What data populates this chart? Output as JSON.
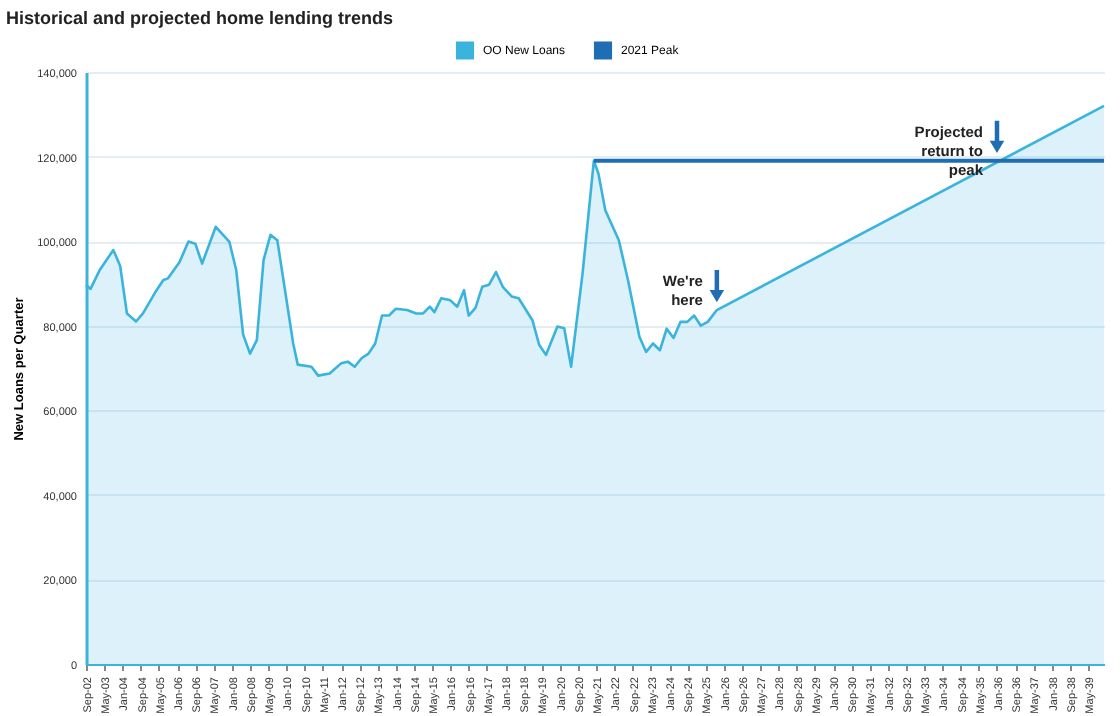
{
  "chart_data": {
    "type": "area",
    "title": "Historical and projected home lending trends",
    "ylabel": "New Loans per Quarter",
    "series": [
      {
        "name": "OO New Loans",
        "type": "area",
        "color": "#3bb4dd",
        "x": [
          "2002-09",
          "2002-11",
          "2003-03",
          "2003-09",
          "2003-12",
          "2004-03",
          "2004-07",
          "2004-10",
          "2005-04",
          "2005-07",
          "2005-09",
          "2006-02",
          "2006-06",
          "2006-09",
          "2006-12",
          "2007-06",
          "2007-12",
          "2008-03",
          "2008-06",
          "2008-09",
          "2008-12",
          "2009-03",
          "2009-06",
          "2009-09",
          "2010-04",
          "2010-06",
          "2010-12",
          "2011-03",
          "2011-08",
          "2012-01",
          "2012-04",
          "2012-07",
          "2012-10",
          "2013-01",
          "2013-04",
          "2013-07",
          "2013-10",
          "2014-01",
          "2014-06",
          "2014-10",
          "2015-01",
          "2015-04",
          "2015-06",
          "2015-09",
          "2016-01",
          "2016-04",
          "2016-07",
          "2016-09",
          "2016-12",
          "2017-03",
          "2017-06",
          "2017-09",
          "2017-12",
          "2018-04",
          "2018-07",
          "2019-01",
          "2019-04",
          "2019-07",
          "2019-12",
          "2020-03",
          "2020-06",
          "2020-11",
          "2021-04",
          "2021-06",
          "2021-09",
          "2022-03",
          "2022-07",
          "2022-12",
          "2023-03",
          "2023-06",
          "2023-09",
          "2023-12",
          "2024-03",
          "2024-06",
          "2024-09",
          "2024-12",
          "2025-03",
          "2025-06",
          "2025-10",
          "2039-12"
        ],
        "values": [
          89700,
          88700,
          93100,
          97900,
          94200,
          82900,
          81000,
          82900,
          88400,
          90800,
          91200,
          95000,
          99900,
          99400,
          94700,
          103400,
          99800,
          93100,
          77900,
          73400,
          76600,
          95500,
          101500,
          100200,
          75800,
          70800,
          70300,
          68200,
          68700,
          71100,
          71500,
          70300,
          72300,
          73400,
          75800,
          82400,
          82400,
          84000,
          83700,
          82900,
          82900,
          84500,
          83200,
          86500,
          86000,
          84500,
          88400,
          82400,
          84200,
          89200,
          89700,
          92700,
          89200,
          86900,
          86500,
          81300,
          75500,
          73100,
          79800,
          79400,
          70300,
          92300,
          119000,
          116000,
          107300,
          100200,
          90800,
          77400,
          73800,
          75800,
          74200,
          79300,
          77100,
          80900,
          80900,
          82400,
          80000,
          80900,
          83700,
          132000
        ]
      },
      {
        "name": "2021 Peak",
        "type": "line",
        "color": "#1f6db3",
        "x": [
          "2021-04",
          "2039-12"
        ],
        "values": [
          119000,
          119000
        ]
      }
    ],
    "xlim": [
      "2002-09",
      "2039-12"
    ],
    "xticks": [
      {
        "value": "2002-09",
        "label": "Sep-02"
      },
      {
        "value": "2003-05",
        "label": "May-03"
      },
      {
        "value": "2004-01",
        "label": "Jan-04"
      },
      {
        "value": "2004-09",
        "label": "Sep-04"
      },
      {
        "value": "2005-05",
        "label": "May-05"
      },
      {
        "value": "2006-01",
        "label": "Jan-06"
      },
      {
        "value": "2006-09",
        "label": "Sep-06"
      },
      {
        "value": "2007-05",
        "label": "May-07"
      },
      {
        "value": "2008-01",
        "label": "Jan-08"
      },
      {
        "value": "2008-09",
        "label": "Sep-08"
      },
      {
        "value": "2009-05",
        "label": "May-09"
      },
      {
        "value": "2010-01",
        "label": "Jan-10"
      },
      {
        "value": "2010-09",
        "label": "Sep-10"
      },
      {
        "value": "2011-05",
        "label": "May-11"
      },
      {
        "value": "2012-01",
        "label": "Jan-12"
      },
      {
        "value": "2012-09",
        "label": "Sep-12"
      },
      {
        "value": "2013-05",
        "label": "May-13"
      },
      {
        "value": "2014-01",
        "label": "Jan-14"
      },
      {
        "value": "2014-09",
        "label": "Sep-14"
      },
      {
        "value": "2015-05",
        "label": "May-15"
      },
      {
        "value": "2016-01",
        "label": "Jan-16"
      },
      {
        "value": "2016-09",
        "label": "Sep-16"
      },
      {
        "value": "2017-05",
        "label": "May-17"
      },
      {
        "value": "2018-01",
        "label": "Jan-18"
      },
      {
        "value": "2018-09",
        "label": "Sep-18"
      },
      {
        "value": "2019-05",
        "label": "May-19"
      },
      {
        "value": "2020-01",
        "label": "Jan-20"
      },
      {
        "value": "2020-09",
        "label": "Sep-20"
      },
      {
        "value": "2021-05",
        "label": "May-21"
      },
      {
        "value": "2022-01",
        "label": "Jan-22"
      },
      {
        "value": "2022-09",
        "label": "Sep-22"
      },
      {
        "value": "2023-05",
        "label": "May-23"
      },
      {
        "value": "2024-01",
        "label": "Jan-24"
      },
      {
        "value": "2024-09",
        "label": "Sep-24"
      },
      {
        "value": "2025-05",
        "label": "May-25"
      },
      {
        "value": "2026-01",
        "label": "Jan-26"
      },
      {
        "value": "2026-09",
        "label": "Sep-26"
      },
      {
        "value": "2027-05",
        "label": "May-27"
      },
      {
        "value": "2028-01",
        "label": "Jan-28"
      },
      {
        "value": "2028-09",
        "label": "Sep-28"
      },
      {
        "value": "2029-05",
        "label": "May-29"
      },
      {
        "value": "2030-01",
        "label": "Jan-30"
      },
      {
        "value": "2030-09",
        "label": "Sep-30"
      },
      {
        "value": "2031-05",
        "label": "May-31"
      },
      {
        "value": "2032-01",
        "label": "Jan-32"
      },
      {
        "value": "2032-09",
        "label": "Sep-32"
      },
      {
        "value": "2033-05",
        "label": "May-33"
      },
      {
        "value": "2034-01",
        "label": "Jan-34"
      },
      {
        "value": "2034-09",
        "label": "Sep-34"
      },
      {
        "value": "2035-05",
        "label": "May-35"
      },
      {
        "value": "2036-01",
        "label": "Jan-36"
      },
      {
        "value": "2036-09",
        "label": "Sep-36"
      },
      {
        "value": "2037-05",
        "label": "May-37"
      },
      {
        "value": "2038-01",
        "label": "Jan-38"
      },
      {
        "value": "2038-09",
        "label": "Sep-38"
      },
      {
        "value": "2039-05",
        "label": "May-39"
      }
    ],
    "ylim": [
      0,
      140000
    ],
    "yticks": [
      {
        "value": 0,
        "label": "0"
      },
      {
        "value": 20000,
        "label": "20,000"
      },
      {
        "value": 40000,
        "label": "40,000"
      },
      {
        "value": 60000,
        "label": "60,000"
      },
      {
        "value": 80000,
        "label": "80,000"
      },
      {
        "value": 100000,
        "label": "100,000"
      },
      {
        "value": 120000,
        "label": "120,000"
      },
      {
        "value": 140000,
        "label": "140,000"
      }
    ],
    "grid": "y",
    "legend": "top",
    "annotations": [
      {
        "text": "We're here",
        "x": "2025-10",
        "y": 83700
      },
      {
        "text": "Projected return to peak",
        "x": "2036-01",
        "y": 119000
      }
    ]
  }
}
